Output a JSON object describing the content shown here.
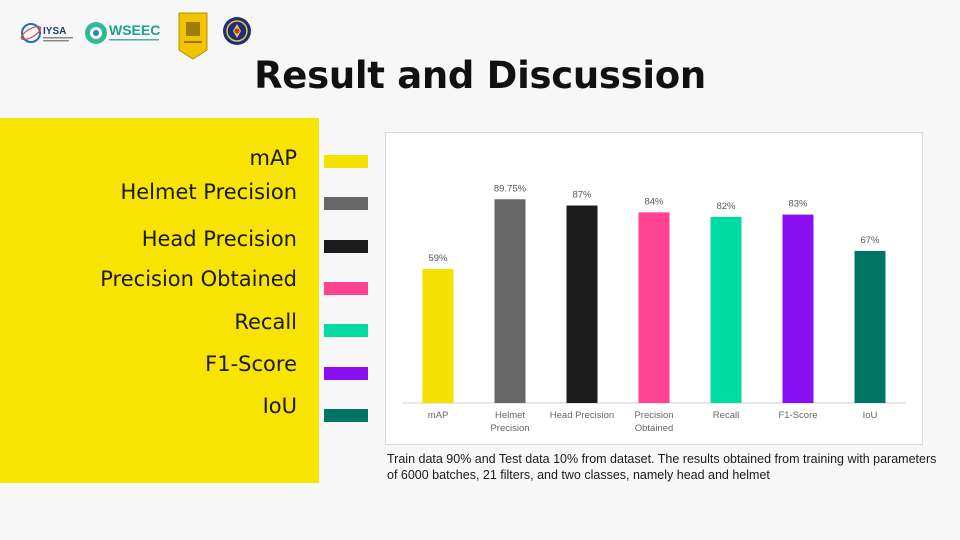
{
  "header": {
    "title": "Result and Discussion",
    "logos": [
      {
        "name": "iysa",
        "text": "IYSA"
      },
      {
        "name": "wseec",
        "text": "WSEEC"
      },
      {
        "name": "university-emblem"
      },
      {
        "name": "institution-seal"
      }
    ]
  },
  "legend": {
    "items": [
      {
        "label": "mAP",
        "color": "#f5e100"
      },
      {
        "label": "Helmet Precision",
        "color": "#666666"
      },
      {
        "label": "Head Precision",
        "color": "#1b1b1b"
      },
      {
        "label": "Precision Obtained",
        "color": "#ff4391"
      },
      {
        "label": "Recall",
        "color": "#00dca0"
      },
      {
        "label": "F1-Score",
        "color": "#8a0ff0"
      },
      {
        "label": "IoU",
        "color": "#007565"
      }
    ]
  },
  "chart_data": {
    "type": "bar",
    "categories": [
      "mAP",
      "Helmet Precision",
      "Head Precision",
      "Precision Obtained",
      "Recall",
      "F1-Score",
      "IoU"
    ],
    "values": [
      59,
      89.75,
      87,
      84,
      82,
      83,
      67
    ],
    "data_labels": [
      "59%",
      "89.75%",
      "87%",
      "84%",
      "82%",
      "83%",
      "67%"
    ],
    "colors": [
      "#f5e100",
      "#666666",
      "#1b1b1b",
      "#ff4391",
      "#00dca0",
      "#8a0ff0",
      "#007565"
    ],
    "ylim": [
      0,
      100
    ],
    "grid": false,
    "title": "",
    "xlabel": "",
    "ylabel": ""
  },
  "caption": "Train data 90% and Test data 10% from dataset. The results obtained from training with parameters of 6000 batches, 21 filters, and two classes, namely head and helmet"
}
